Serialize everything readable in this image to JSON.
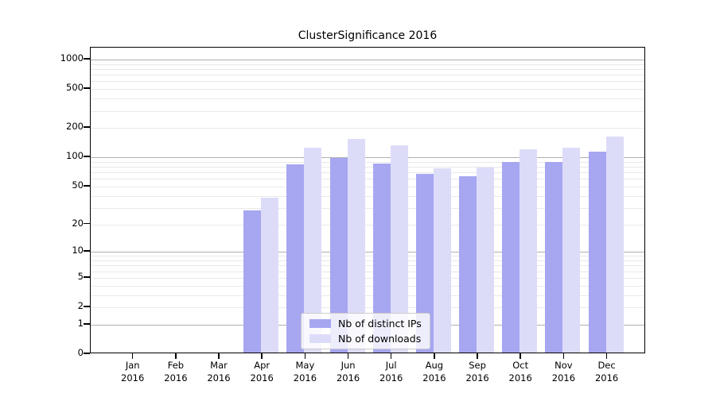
{
  "title": "ClusterSignificance 2016",
  "chart_data": {
    "type": "bar",
    "title": "ClusterSignificance 2016",
    "categories": [
      "Jan 2016",
      "Feb 2016",
      "Mar 2016",
      "Apr 2016",
      "May 2016",
      "Jun 2016",
      "Jul 2016",
      "Aug 2016",
      "Sep 2016",
      "Oct 2016",
      "Nov 2016",
      "Dec 2016"
    ],
    "series": [
      {
        "name": "Nb of distinct IPs",
        "color": "#a6a6f1",
        "values": [
          0,
          0,
          0,
          27,
          82,
          95,
          83,
          65,
          62,
          86,
          87,
          111
        ]
      },
      {
        "name": "Nb of downloads",
        "color": "#dddcf8",
        "values": [
          0,
          0,
          0,
          37,
          121,
          150,
          128,
          74,
          76,
          117,
          122,
          157
        ]
      }
    ],
    "xlabel": "",
    "ylabel": "",
    "yscale": "log1p",
    "y_ticks": [
      0,
      1,
      2,
      5,
      10,
      20,
      50,
      100,
      200,
      500,
      1000
    ],
    "ylim": [
      0,
      1300
    ],
    "grid": true,
    "legend_position": "lower center"
  },
  "colors": {
    "major_grid": "#b0b0b0",
    "minor_grid": "#e9e9ec",
    "axis": "#000000",
    "background": "#ffffff"
  }
}
